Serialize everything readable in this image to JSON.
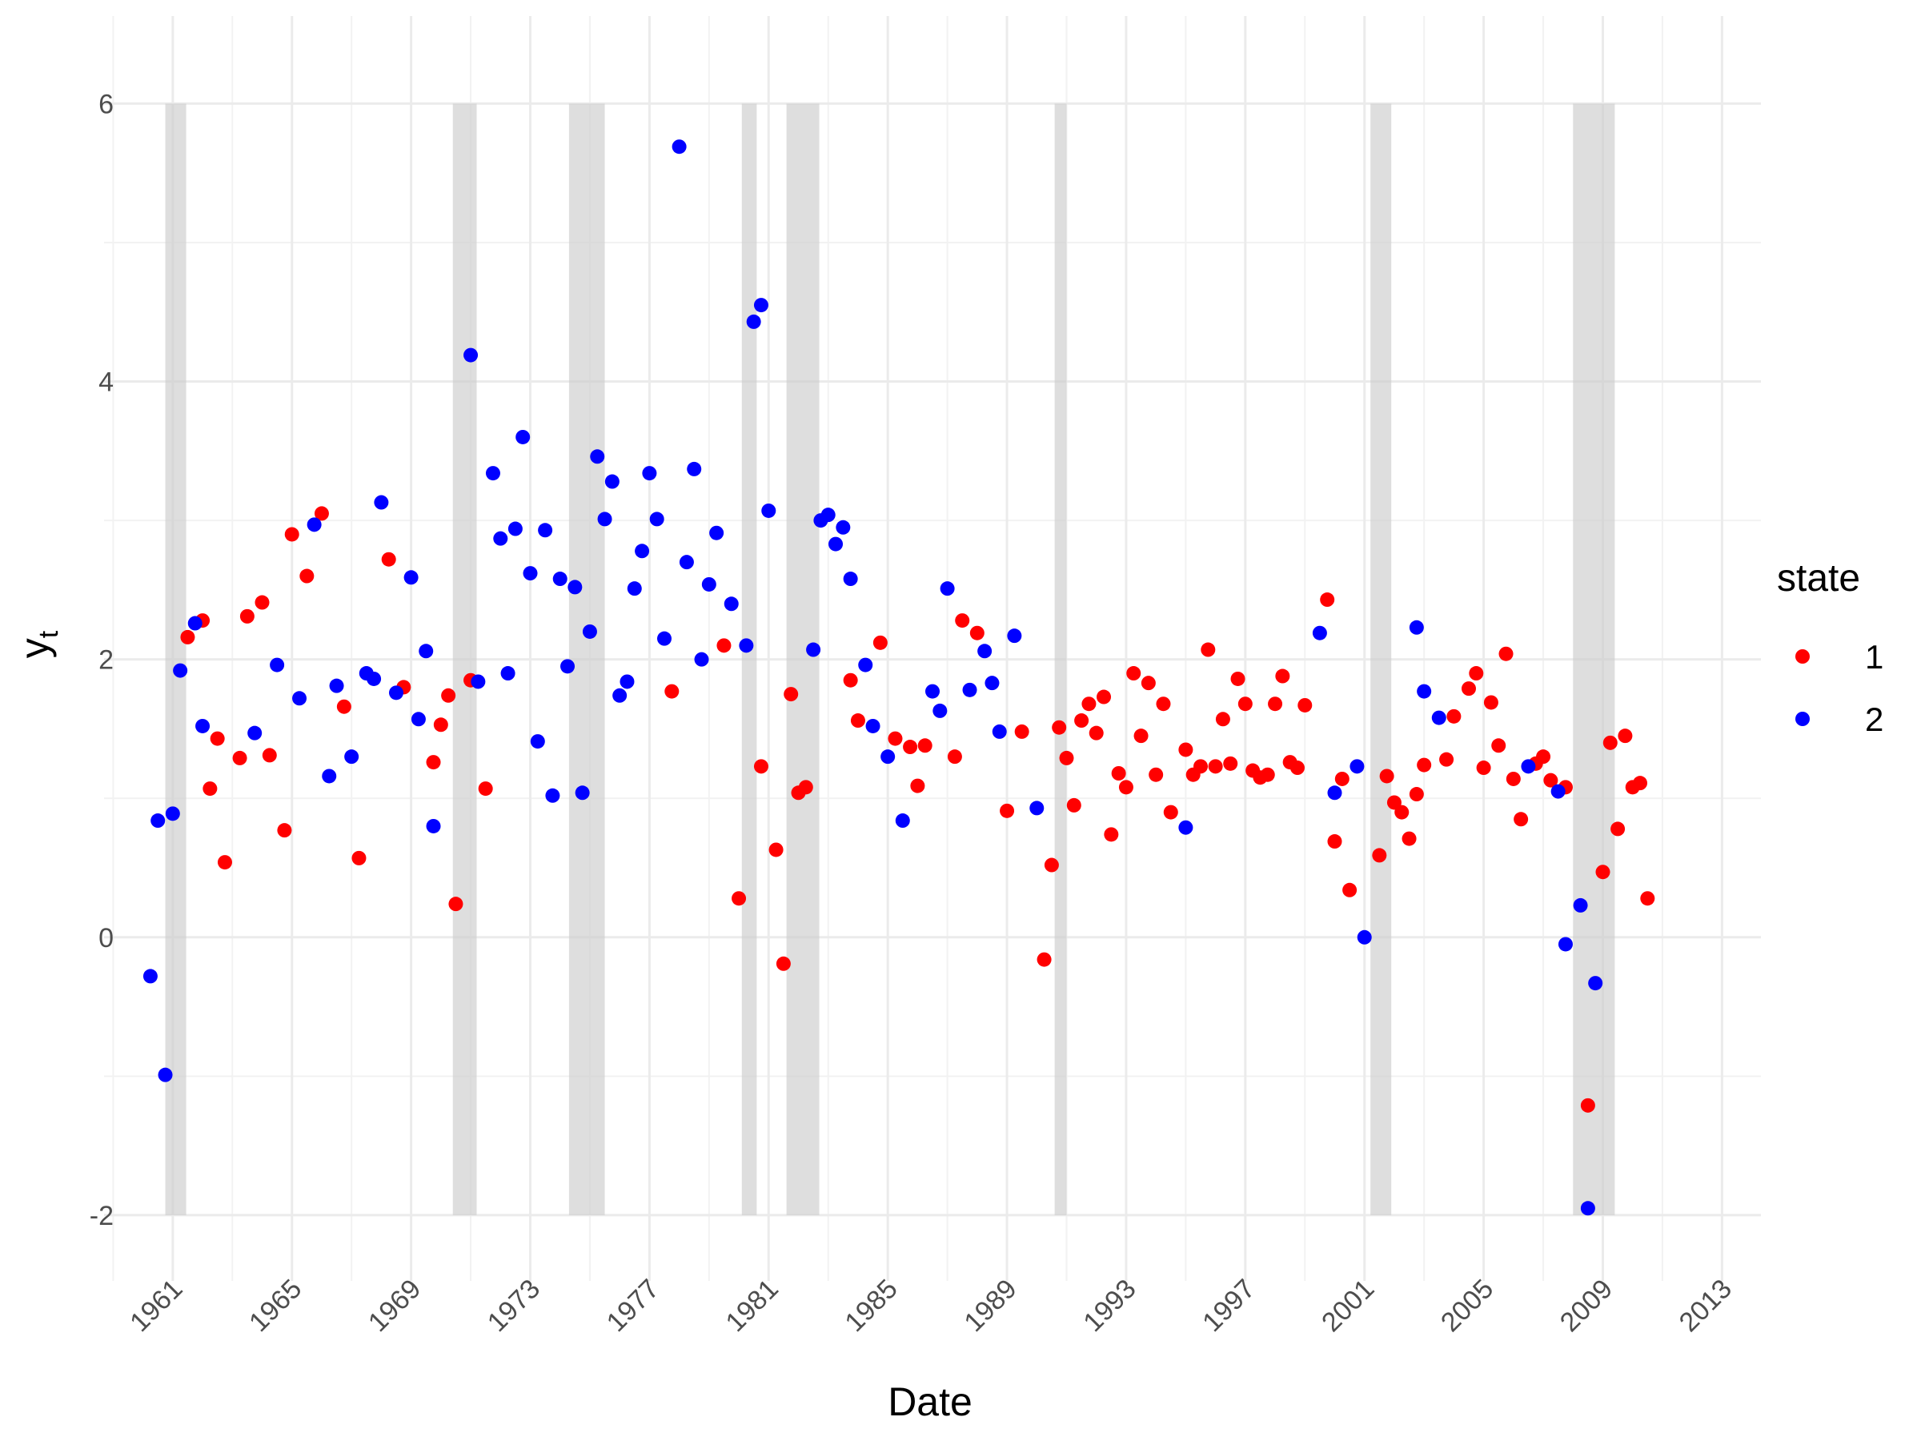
{
  "chart_data": {
    "type": "scatter",
    "title": "",
    "xlabel": "Date",
    "ylabel": "y",
    "ylabel_subscript": "t",
    "x_unit": "year",
    "xlim": [
      1959.5,
      2013.5
    ],
    "ylim": [
      -2.3,
      6.4
    ],
    "x_ticks": [
      1961,
      1965,
      1969,
      1973,
      1977,
      1981,
      1985,
      1989,
      1993,
      1997,
      2001,
      2005,
      2009,
      2013
    ],
    "x_tick_labels": [
      "1961",
      "1965",
      "1969",
      "1973",
      "1977",
      "1981",
      "1985",
      "1989",
      "1993",
      "1997",
      "2001",
      "2005",
      "2009",
      "2013"
    ],
    "y_ticks": [
      -2,
      0,
      2,
      4,
      6
    ],
    "y_tick_labels": [
      "-2",
      "0",
      "2",
      "4",
      "6"
    ],
    "grid": true,
    "legend": {
      "title": "state",
      "position": "right"
    },
    "recession_shading": [
      {
        "start": 1960.75,
        "end": 1961.45
      },
      {
        "start": 1970.4,
        "end": 1971.2
      },
      {
        "start": 1974.3,
        "end": 1975.5
      },
      {
        "start": 1980.1,
        "end": 1980.6
      },
      {
        "start": 1981.6,
        "end": 1982.7
      },
      {
        "start": 1990.6,
        "end": 1991.0
      },
      {
        "start": 2001.2,
        "end": 2001.9
      },
      {
        "start": 2008.0,
        "end": 2009.4
      }
    ],
    "series": [
      {
        "name": "1",
        "color": "#ff0000",
        "points": [
          [
            1961.5,
            2.16
          ],
          [
            1962.0,
            2.28
          ],
          [
            1962.25,
            1.07
          ],
          [
            1962.5,
            1.43
          ],
          [
            1962.75,
            0.54
          ],
          [
            1963.25,
            1.29
          ],
          [
            1963.5,
            2.31
          ],
          [
            1964.0,
            2.41
          ],
          [
            1964.25,
            1.31
          ],
          [
            1964.75,
            0.77
          ],
          [
            1965.0,
            2.9
          ],
          [
            1965.5,
            2.6
          ],
          [
            1966.0,
            3.05
          ],
          [
            1966.75,
            1.66
          ],
          [
            1967.25,
            0.57
          ],
          [
            1968.25,
            2.72
          ],
          [
            1968.75,
            1.8
          ],
          [
            1969.75,
            1.26
          ],
          [
            1970.0,
            1.53
          ],
          [
            1970.25,
            1.74
          ],
          [
            1970.5,
            0.24
          ],
          [
            1971.0,
            1.85
          ],
          [
            1971.5,
            1.07
          ],
          [
            1977.75,
            1.77
          ],
          [
            1979.5,
            2.1
          ],
          [
            1980.0,
            0.28
          ],
          [
            1980.75,
            1.23
          ],
          [
            1981.25,
            0.63
          ],
          [
            1981.5,
            -0.19
          ],
          [
            1981.75,
            1.75
          ],
          [
            1982.0,
            1.04
          ],
          [
            1982.25,
            1.08
          ],
          [
            1983.75,
            1.85
          ],
          [
            1984.0,
            1.56
          ],
          [
            1984.75,
            2.12
          ],
          [
            1985.25,
            1.43
          ],
          [
            1985.75,
            1.37
          ],
          [
            1986.0,
            1.09
          ],
          [
            1986.25,
            1.38
          ],
          [
            1987.25,
            1.3
          ],
          [
            1987.5,
            2.28
          ],
          [
            1988.0,
            2.19
          ],
          [
            1989.0,
            0.91
          ],
          [
            1989.5,
            1.48
          ],
          [
            1990.25,
            -0.16
          ],
          [
            1990.5,
            0.52
          ],
          [
            1990.75,
            1.51
          ],
          [
            1991.0,
            1.29
          ],
          [
            1991.25,
            0.95
          ],
          [
            1991.5,
            1.56
          ],
          [
            1991.75,
            1.68
          ],
          [
            1992.0,
            1.47
          ],
          [
            1992.25,
            1.73
          ],
          [
            1992.5,
            0.74
          ],
          [
            1992.75,
            1.18
          ],
          [
            1993.0,
            1.08
          ],
          [
            1993.25,
            1.9
          ],
          [
            1993.5,
            1.45
          ],
          [
            1993.75,
            1.83
          ],
          [
            1994.0,
            1.17
          ],
          [
            1994.25,
            1.68
          ],
          [
            1994.5,
            0.9
          ],
          [
            1995.0,
            1.35
          ],
          [
            1995.25,
            1.17
          ],
          [
            1995.5,
            1.23
          ],
          [
            1995.75,
            2.07
          ],
          [
            1996.0,
            1.23
          ],
          [
            1996.25,
            1.57
          ],
          [
            1996.5,
            1.25
          ],
          [
            1996.75,
            1.86
          ],
          [
            1997.0,
            1.68
          ],
          [
            1997.25,
            1.2
          ],
          [
            1997.5,
            1.15
          ],
          [
            1997.75,
            1.17
          ],
          [
            1998.0,
            1.68
          ],
          [
            1998.25,
            1.88
          ],
          [
            1998.5,
            1.26
          ],
          [
            1998.75,
            1.22
          ],
          [
            1999.0,
            1.67
          ],
          [
            1999.75,
            2.43
          ],
          [
            2000.0,
            0.69
          ],
          [
            2000.25,
            1.14
          ],
          [
            2000.5,
            0.34
          ],
          [
            2001.5,
            0.59
          ],
          [
            2001.75,
            1.16
          ],
          [
            2002.0,
            0.97
          ],
          [
            2002.25,
            0.9
          ],
          [
            2002.5,
            0.71
          ],
          [
            2002.75,
            1.03
          ],
          [
            2003.0,
            1.24
          ],
          [
            2003.75,
            1.28
          ],
          [
            2004.0,
            1.59
          ],
          [
            2004.5,
            1.79
          ],
          [
            2004.75,
            1.9
          ],
          [
            2005.0,
            1.22
          ],
          [
            2005.25,
            1.69
          ],
          [
            2005.5,
            1.38
          ],
          [
            2005.75,
            2.04
          ],
          [
            2006.0,
            1.14
          ],
          [
            2006.25,
            0.85
          ],
          [
            2006.75,
            1.25
          ],
          [
            2007.0,
            1.3
          ],
          [
            2007.25,
            1.13
          ],
          [
            2007.75,
            1.08
          ],
          [
            2008.5,
            -1.21
          ],
          [
            2009.0,
            0.47
          ],
          [
            2009.25,
            1.4
          ],
          [
            2009.5,
            0.78
          ],
          [
            2009.75,
            1.45
          ],
          [
            2010.0,
            1.08
          ],
          [
            2010.25,
            1.11
          ],
          [
            2010.5,
            0.28
          ]
        ]
      },
      {
        "name": "2",
        "color": "#0000ff",
        "points": [
          [
            1960.25,
            -0.28
          ],
          [
            1960.5,
            0.84
          ],
          [
            1960.75,
            -0.99
          ],
          [
            1961.0,
            0.89
          ],
          [
            1961.25,
            1.92
          ],
          [
            1961.75,
            2.26
          ],
          [
            1962.0,
            1.52
          ],
          [
            1963.75,
            1.47
          ],
          [
            1964.5,
            1.96
          ],
          [
            1965.25,
            1.72
          ],
          [
            1965.75,
            2.97
          ],
          [
            1966.25,
            1.16
          ],
          [
            1966.5,
            1.81
          ],
          [
            1967.0,
            1.3
          ],
          [
            1967.5,
            1.9
          ],
          [
            1967.75,
            1.86
          ],
          [
            1968.0,
            3.13
          ],
          [
            1968.5,
            1.76
          ],
          [
            1969.0,
            2.59
          ],
          [
            1969.25,
            1.57
          ],
          [
            1969.5,
            2.06
          ],
          [
            1969.75,
            0.8
          ],
          [
            1971.0,
            4.19
          ],
          [
            1971.25,
            1.84
          ],
          [
            1971.75,
            3.34
          ],
          [
            1972.0,
            2.87
          ],
          [
            1972.25,
            1.9
          ],
          [
            1972.5,
            2.94
          ],
          [
            1972.75,
            3.6
          ],
          [
            1973.0,
            2.62
          ],
          [
            1973.25,
            1.41
          ],
          [
            1973.5,
            2.93
          ],
          [
            1973.75,
            1.02
          ],
          [
            1974.0,
            2.58
          ],
          [
            1974.25,
            1.95
          ],
          [
            1974.5,
            2.52
          ],
          [
            1974.75,
            1.04
          ],
          [
            1975.0,
            2.2
          ],
          [
            1975.25,
            3.46
          ],
          [
            1975.5,
            3.01
          ],
          [
            1975.75,
            3.28
          ],
          [
            1976.0,
            1.74
          ],
          [
            1976.25,
            1.84
          ],
          [
            1976.5,
            2.51
          ],
          [
            1976.75,
            2.78
          ],
          [
            1977.0,
            3.34
          ],
          [
            1977.25,
            3.01
          ],
          [
            1977.5,
            2.15
          ],
          [
            1978.0,
            5.69
          ],
          [
            1978.25,
            2.7
          ],
          [
            1978.5,
            3.37
          ],
          [
            1978.75,
            2.0
          ],
          [
            1979.0,
            2.54
          ],
          [
            1979.25,
            2.91
          ],
          [
            1979.75,
            2.4
          ],
          [
            1980.25,
            2.1
          ],
          [
            1980.5,
            4.43
          ],
          [
            1980.75,
            4.55
          ],
          [
            1981.0,
            3.07
          ],
          [
            1982.5,
            2.07
          ],
          [
            1982.75,
            3.0
          ],
          [
            1983.0,
            3.04
          ],
          [
            1983.25,
            2.83
          ],
          [
            1983.5,
            2.95
          ],
          [
            1983.75,
            2.58
          ],
          [
            1984.25,
            1.96
          ],
          [
            1984.5,
            1.52
          ],
          [
            1985.0,
            1.3
          ],
          [
            1985.5,
            0.84
          ],
          [
            1986.5,
            1.77
          ],
          [
            1986.75,
            1.63
          ],
          [
            1987.0,
            2.51
          ],
          [
            1987.75,
            1.78
          ],
          [
            1988.25,
            2.06
          ],
          [
            1988.5,
            1.83
          ],
          [
            1988.75,
            1.48
          ],
          [
            1989.25,
            2.17
          ],
          [
            1990.0,
            0.93
          ],
          [
            1995.0,
            0.79
          ],
          [
            1999.5,
            2.19
          ],
          [
            2000.0,
            1.04
          ],
          [
            2000.75,
            1.23
          ],
          [
            2001.0,
            0.0
          ],
          [
            2002.75,
            2.23
          ],
          [
            2003.0,
            1.77
          ],
          [
            2003.5,
            1.58
          ],
          [
            2006.5,
            1.23
          ],
          [
            2007.5,
            1.05
          ],
          [
            2007.75,
            -0.05
          ],
          [
            2008.25,
            0.23
          ],
          [
            2008.5,
            -1.95
          ],
          [
            2008.75,
            -0.33
          ]
        ]
      }
    ]
  }
}
